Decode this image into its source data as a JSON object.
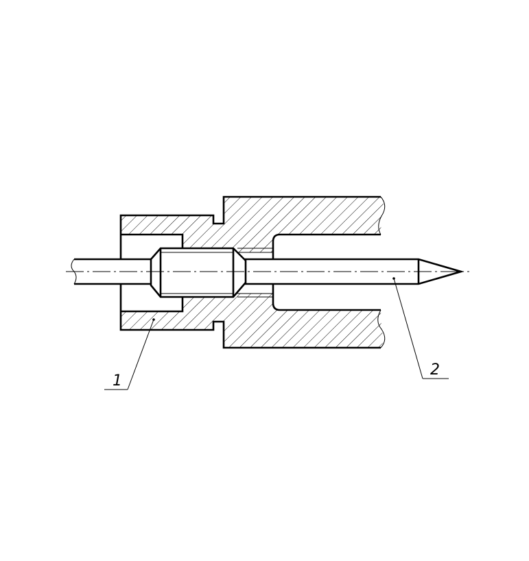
{
  "diagram": {
    "callouts": [
      {
        "id": "1",
        "label": "1"
      },
      {
        "id": "2",
        "label": "2"
      }
    ]
  }
}
